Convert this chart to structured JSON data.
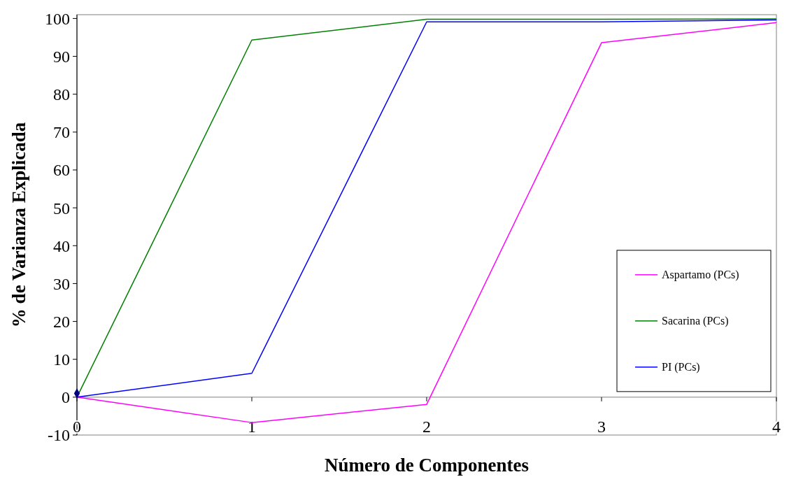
{
  "chart_data": {
    "type": "line",
    "xlabel": "Número de Componentes",
    "ylabel": "% de Varianza Explicada",
    "x": [
      0,
      1,
      2,
      3,
      4
    ],
    "xlim": [
      0,
      4
    ],
    "xticks": [
      0,
      1,
      2,
      3,
      4
    ],
    "ylim": [
      -10,
      101
    ],
    "yticks": [
      -10,
      0,
      10,
      20,
      30,
      40,
      50,
      60,
      70,
      80,
      90,
      100
    ],
    "series": [
      {
        "name": "Aspartamo (PCs)",
        "color": "#ff00ff",
        "values": [
          0,
          -6.7,
          -1.9,
          93.6,
          98.9
        ]
      },
      {
        "name": "Sacarina (PCs)",
        "color": "#008000",
        "values": [
          0,
          94.3,
          99.8,
          99.8,
          99.9
        ]
      },
      {
        "name": "PI (PCs)",
        "color": "#0000ff",
        "values": [
          0,
          6.3,
          99.1,
          99.1,
          99.6
        ]
      },
      {
        "type": "scatter",
        "color": "#000080",
        "marker": "diamond",
        "x": [
          0
        ],
        "values": [
          1
        ]
      }
    ],
    "legend": "bottom right",
    "marker": "none",
    "line_style": "solid"
  }
}
